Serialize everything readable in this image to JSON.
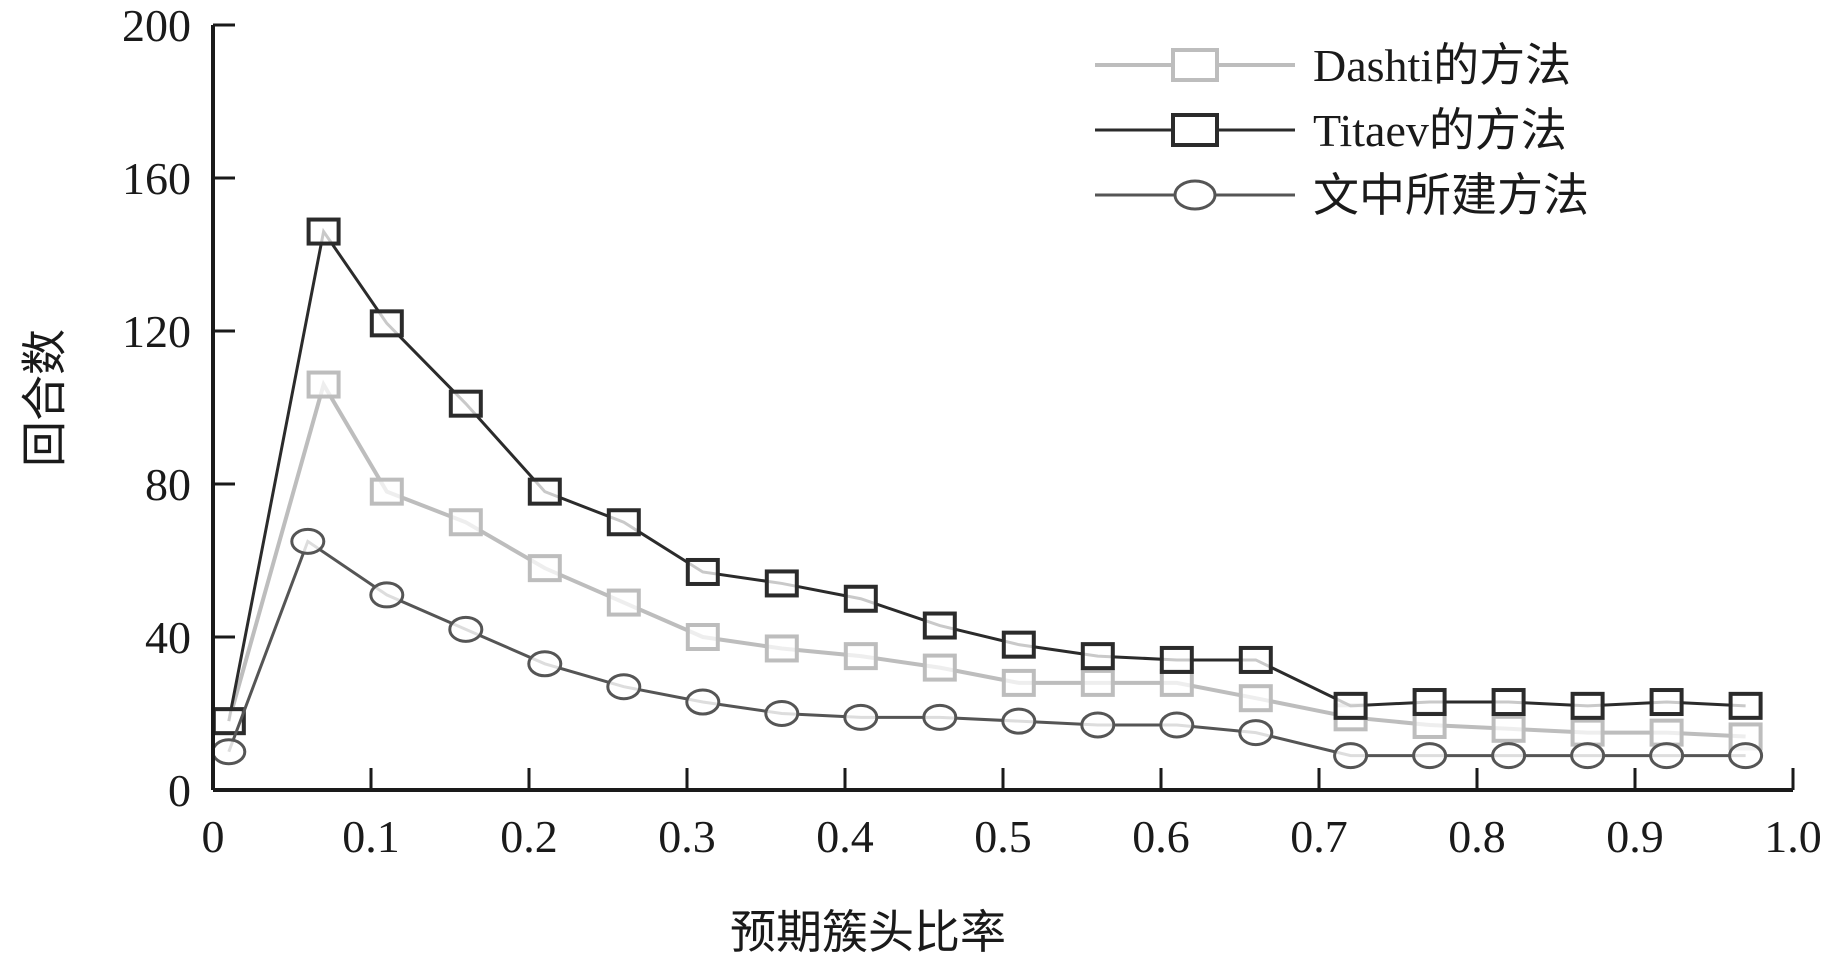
{
  "chart_data": {
    "type": "line",
    "title": "",
    "xlabel": "预期簇头比率",
    "ylabel": "回合数",
    "xlim": [
      0,
      1.0
    ],
    "ylim": [
      0,
      200
    ],
    "x_ticks": [
      "0",
      "0.1",
      "0.2",
      "0.3",
      "0.4",
      "0.5",
      "0.6",
      "0.7",
      "0.8",
      "0.9",
      "1.0"
    ],
    "y_ticks": [
      "0",
      "40",
      "80",
      "120",
      "160",
      "200"
    ],
    "grid": false,
    "legend_position": "top-right",
    "series": [
      {
        "name": "Dashti的方法",
        "marker": "square",
        "color": "#bdbdbd",
        "x": [
          0.01,
          0.07,
          0.11,
          0.16,
          0.21,
          0.26,
          0.31,
          0.36,
          0.41,
          0.46,
          0.51,
          0.56,
          0.61,
          0.66,
          0.72,
          0.77,
          0.82,
          0.87,
          0.92,
          0.97
        ],
        "y": [
          18,
          106,
          78,
          70,
          58,
          49,
          40,
          37,
          35,
          32,
          28,
          28,
          28,
          24,
          19,
          17,
          16,
          15,
          15,
          14
        ]
      },
      {
        "name": "Titaev的方法",
        "marker": "square",
        "color": "#2b2b2b",
        "x": [
          0.01,
          0.07,
          0.11,
          0.16,
          0.21,
          0.26,
          0.31,
          0.36,
          0.41,
          0.46,
          0.51,
          0.56,
          0.61,
          0.66,
          0.72,
          0.77,
          0.82,
          0.87,
          0.92,
          0.97
        ],
        "y": [
          18,
          146,
          122,
          101,
          78,
          70,
          57,
          54,
          50,
          43,
          38,
          35,
          34,
          34,
          22,
          23,
          23,
          22,
          23,
          22
        ]
      },
      {
        "name": "文中所建方法",
        "marker": "circle",
        "color": "#555555",
        "x": [
          0.01,
          0.06,
          0.11,
          0.16,
          0.21,
          0.26,
          0.31,
          0.36,
          0.41,
          0.46,
          0.51,
          0.56,
          0.61,
          0.66,
          0.72,
          0.77,
          0.82,
          0.87,
          0.92,
          0.97
        ],
        "y": [
          10,
          65,
          51,
          42,
          33,
          27,
          23,
          20,
          19,
          19,
          18,
          17,
          17,
          15,
          9,
          9,
          9,
          9,
          9,
          9
        ]
      }
    ]
  }
}
